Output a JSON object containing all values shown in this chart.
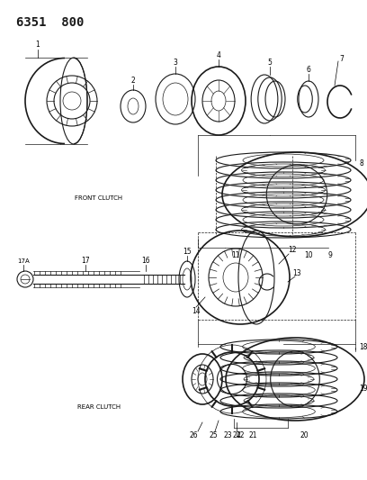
{
  "title": "6351  800",
  "background_color": "#ffffff",
  "line_color": "#1a1a1a",
  "figsize": [
    4.08,
    5.33
  ],
  "dpi": 100,
  "front_clutch_label": "FRONT CLUTCH",
  "rear_clutch_label": "REAR CLUTCH",
  "title_fontsize": 10,
  "label_fontsize": 5,
  "num_fontsize": 5.5
}
